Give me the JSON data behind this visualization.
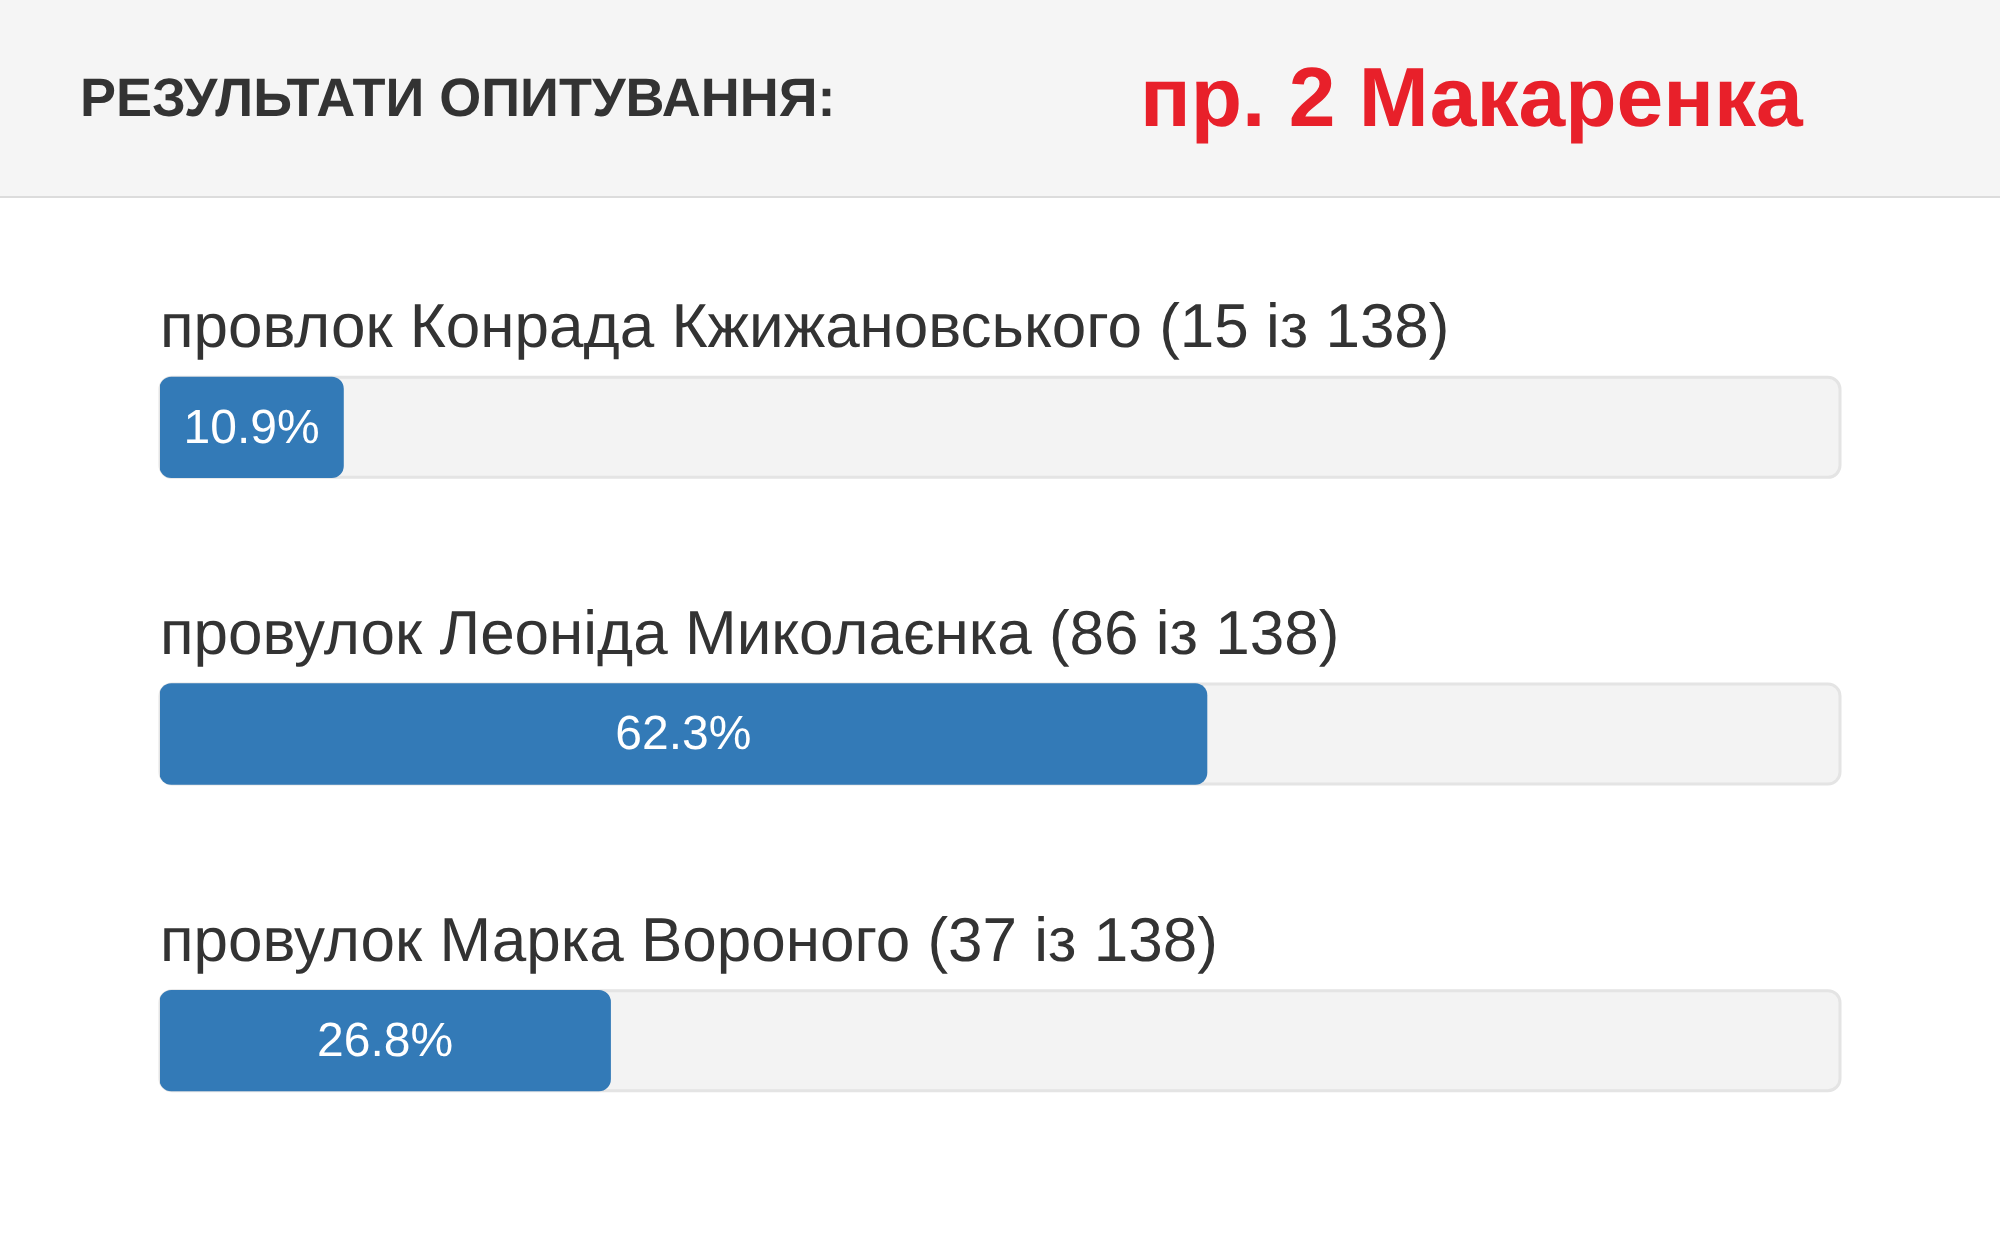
{
  "chart_data": {
    "type": "bar",
    "orientation": "horizontal",
    "title": "РЕЗУЛЬТАТИ ОПИТУВАННЯ:",
    "subtitle": "пр. 2 Макаренка",
    "categories": [
      "провлок Конрада Кжижановського (15 із 138)",
      "провулок Леоніда Миколаєнка (86 із 138)",
      "провулок Марка Вороного (37 із 138)"
    ],
    "values": [
      10.9,
      62.3,
      26.8
    ],
    "color": "#337ab7",
    "value_labels": [
      "10.9%",
      "62.3%",
      "26.8%"
    ],
    "xlim": [
      0,
      100
    ],
    "tick_labels": "y",
    "legend": false
  }
}
